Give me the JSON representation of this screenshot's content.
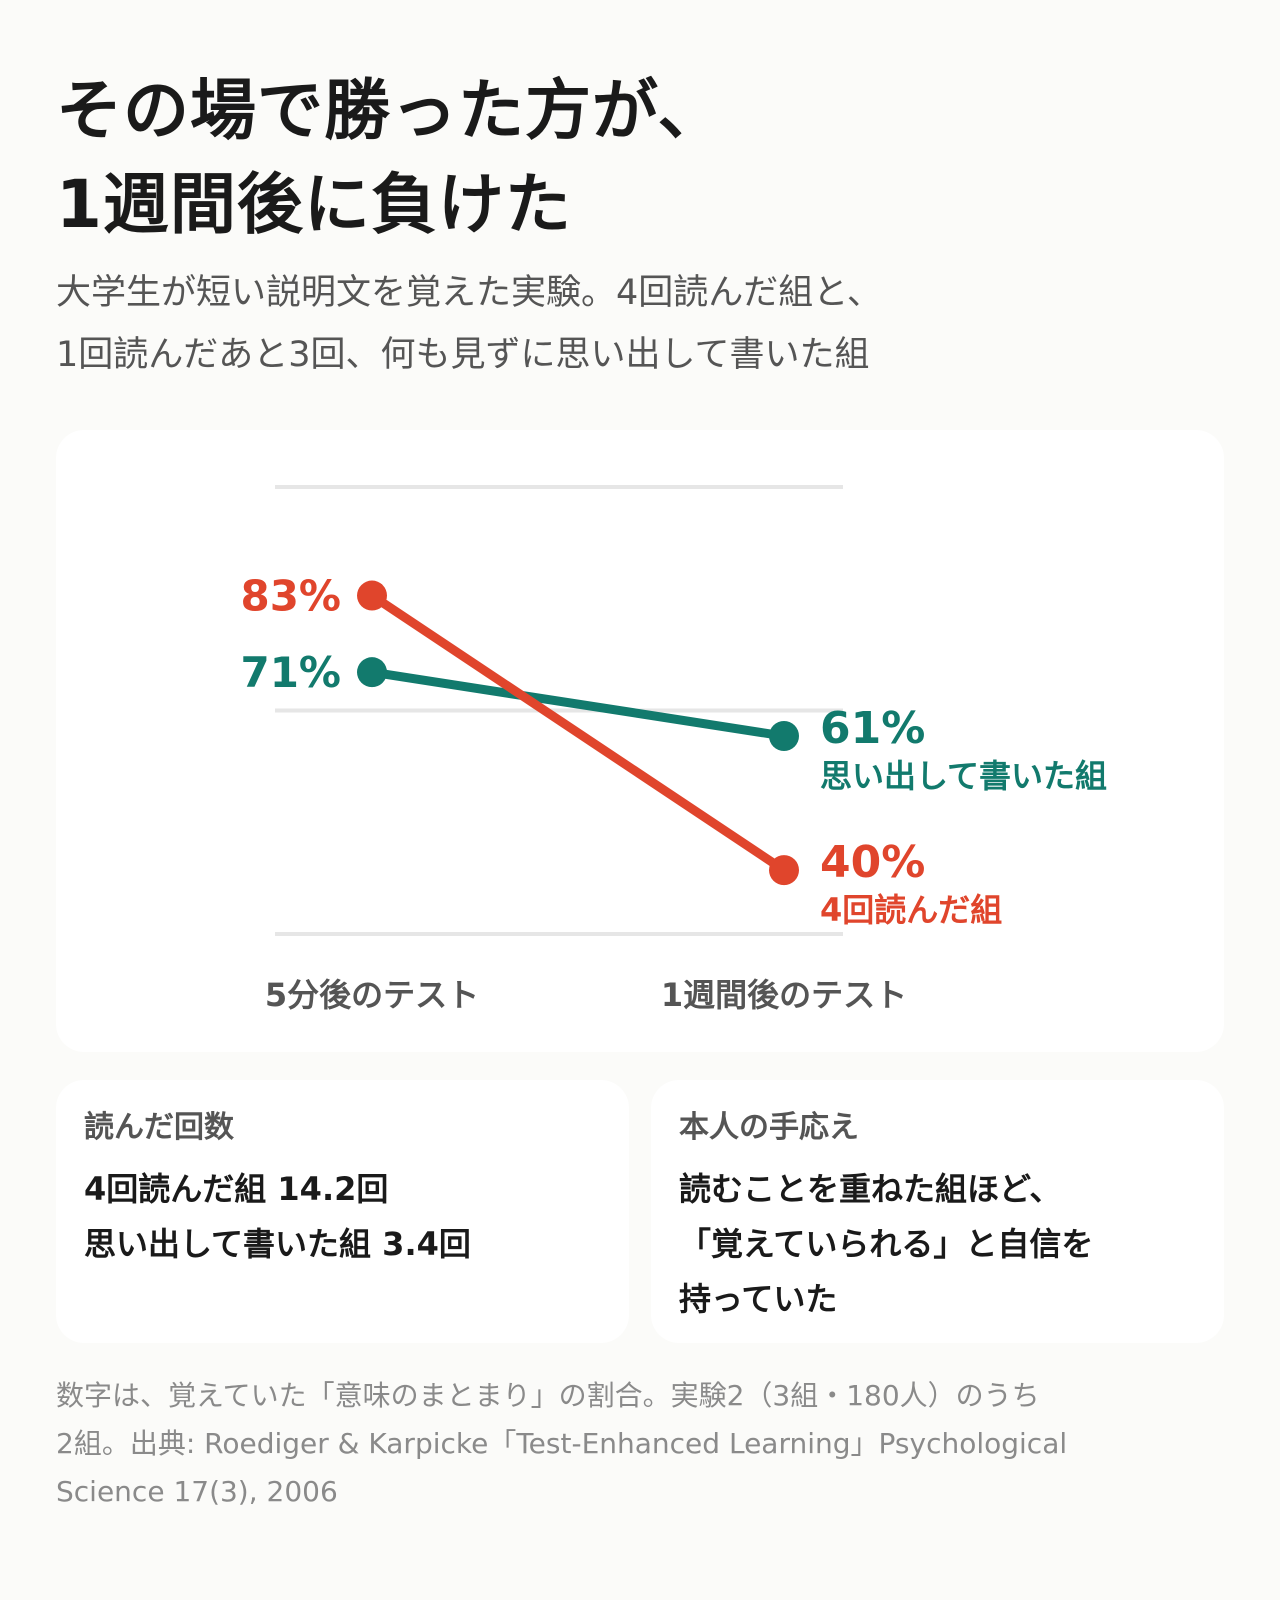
{
  "title": {
    "line1": "その場で勝った方が、",
    "line2": "1週間後に負けた"
  },
  "subtitle": {
    "line1": "大学生が短い説明文を覚えた実験。4回読んだ組と、",
    "line2": "1回読んだあと3回、何も見ずに思い出して書いた組"
  },
  "chart_data": {
    "type": "line",
    "categories": [
      "5分後のテスト",
      "1週間後のテスト"
    ],
    "ylim": [
      30,
      100
    ],
    "grid": true,
    "series": [
      {
        "name": "4回読んだ組",
        "color": "#e0452c",
        "values": [
          83,
          40
        ],
        "value_labels": [
          "83%",
          "40%"
        ]
      },
      {
        "name": "思い出して書いた組",
        "color": "#127a6d",
        "values": [
          71,
          61
        ],
        "value_labels": [
          "71%",
          "61%"
        ]
      }
    ]
  },
  "cards": {
    "reads": {
      "label": "読んだ回数",
      "line1": "4回読んだ組 14.2回",
      "line2": "思い出して書いた組 3.4回"
    },
    "confidence": {
      "label": "本人の手応え",
      "line1": "読むことを重ねた組ほど、",
      "line2": "「覚えていられる」と自信を",
      "line3": "持っていた"
    }
  },
  "footnote": {
    "line1": "数字は、覚えていた「意味のまとまり」の割合。実験2（3組・180人）のうち",
    "line2": "2組。出典: Roediger & Karpicke「Test-Enhanced Learning」Psychological",
    "line3": "Science 17(3), 2006"
  }
}
